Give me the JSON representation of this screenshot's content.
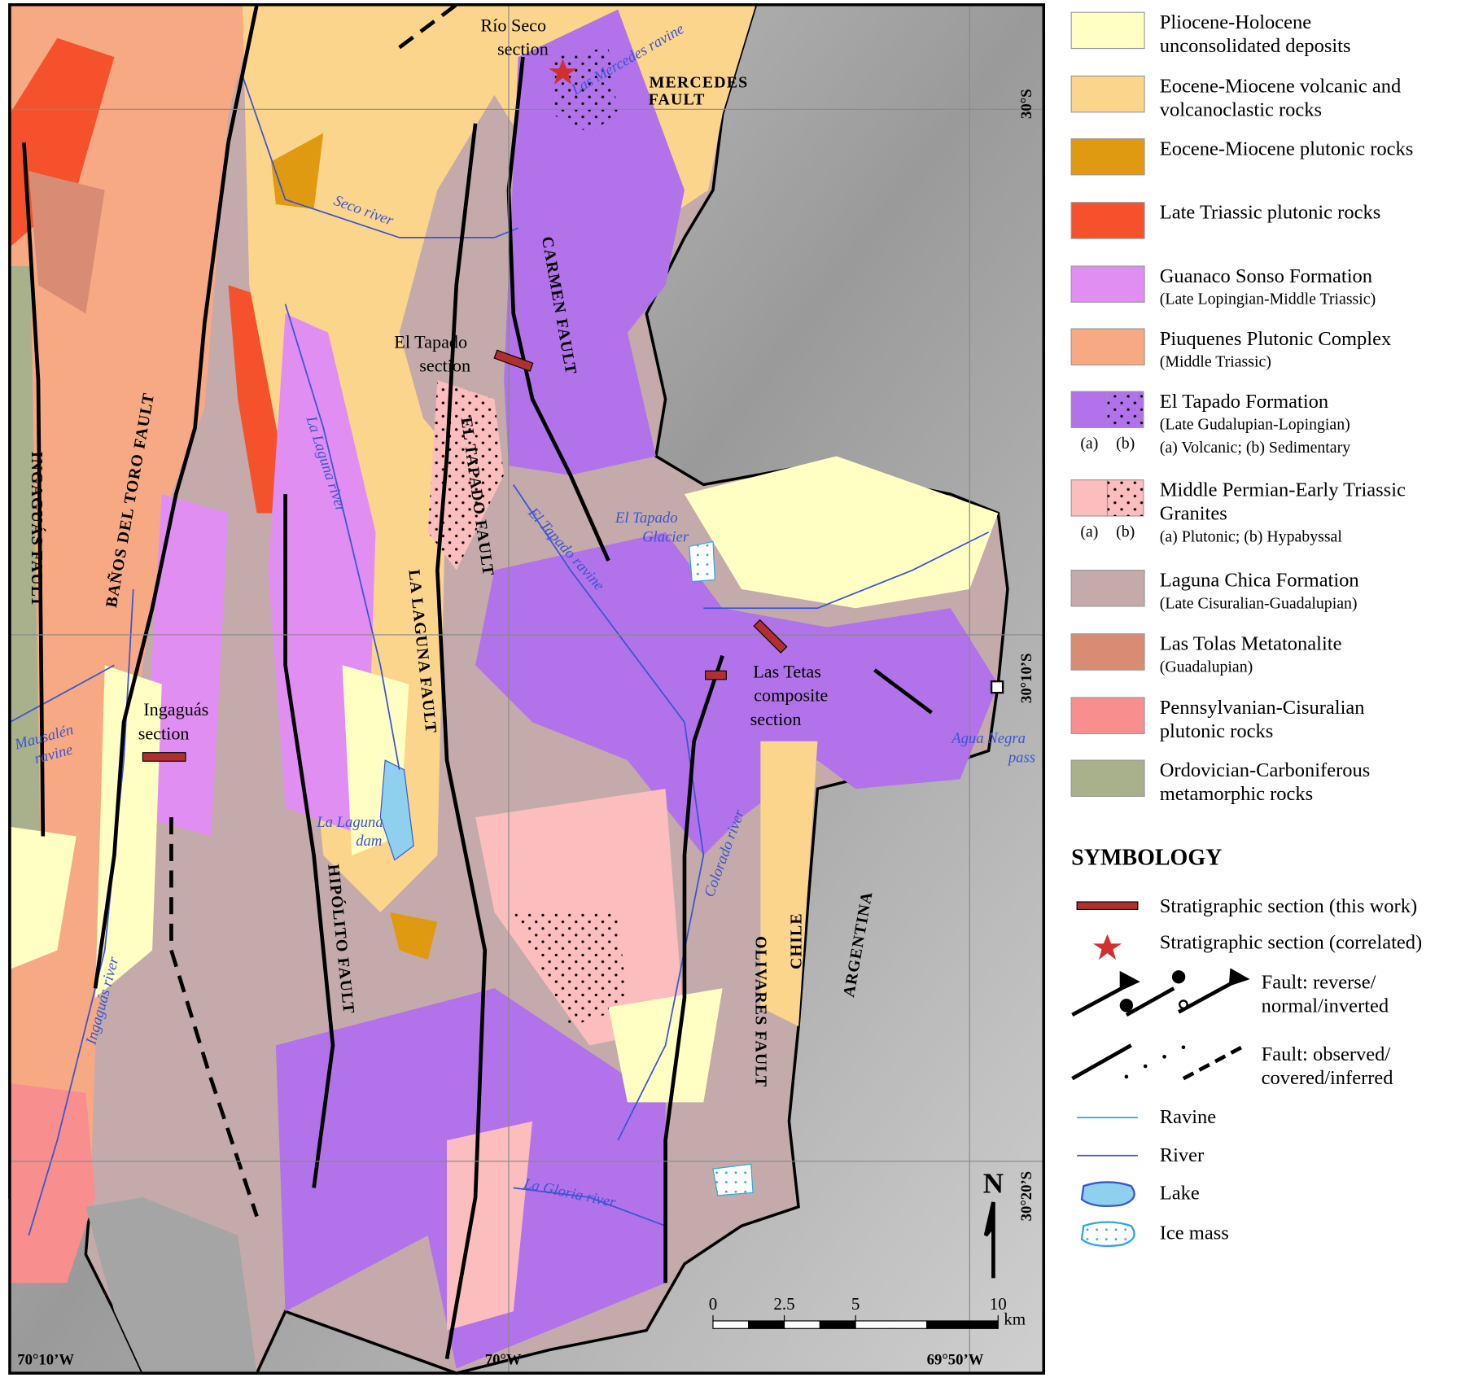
{
  "map": {
    "sections": [
      [
        "Río Seco",
        "section"
      ],
      [
        "El Tapado",
        "section"
      ],
      [
        "Ingaguás",
        "section"
      ],
      [
        "Las Tetas",
        "composite",
        "section"
      ]
    ],
    "faults": [
      [
        "MERCEDES",
        "FAULT"
      ],
      [
        "CARMEN FAULT"
      ],
      [
        "EL TAPADO FAULT"
      ],
      [
        "LA LAGUNA FAULT"
      ],
      [
        "HIPÓLITO FAULT"
      ],
      [
        "OLIVARES FAULT"
      ],
      [
        "BAÑOS DEL TORO FAULT"
      ],
      [
        "INGAGUÁS FAULT"
      ]
    ],
    "water": [
      [
        "Las Mercedes ravine"
      ],
      [
        "Seco river"
      ],
      [
        "La Laguna river"
      ],
      [
        "El Tapado ravine"
      ],
      [
        "El Tapado",
        "Glacier"
      ],
      [
        "Mausalén",
        "ravine"
      ],
      [
        "La Laguna",
        "dam"
      ],
      [
        "Ingaguás river"
      ],
      [
        "Colorado river"
      ],
      [
        "La Gloria river"
      ],
      [
        "Agua Negra",
        "pass"
      ]
    ],
    "countries": [
      "CHILE",
      "ARGENTINA"
    ],
    "coordinates": [
      "30°S",
      "30°10’S",
      "30°20’S",
      "70°10’W",
      "70°W",
      "69°50’W"
    ],
    "north": "N",
    "scale": {
      "ticks": [
        0,
        2.5,
        5,
        10
      ],
      "unit": "km"
    }
  },
  "legend": {
    "units": [
      {
        "name": [
          "Pliocene-Holocene",
          "unconsolidated deposits"
        ],
        "color": "#ffffc4"
      },
      {
        "name": [
          "Eocene-Miocene volcanic and",
          "volcanoclastic rocks"
        ],
        "color": "#fcd58c"
      },
      {
        "name": [
          "Eocene-Miocene plutonic rocks"
        ],
        "color": "#e09a12"
      },
      {
        "name": [
          "Late Triassic plutonic rocks"
        ],
        "color": "#f4512c"
      },
      {
        "name": [
          "Guanaco Sonso Formation"
        ],
        "subtitle": [
          "(Late Lopingian-Middle Triassic)"
        ],
        "color": "#e08ef2"
      },
      {
        "name": [
          "Piuquenes Plutonic Complex"
        ],
        "subtitle": [
          "(Middle Triassic)"
        ],
        "color": "#f7a984"
      },
      {
        "name": [
          "El Tapado Formation"
        ],
        "subtitle": [
          "(Late Gudalupian-Lopingian)",
          "(a) Volcanic; (b) Sedimentary"
        ],
        "color": "#b172ea",
        "parts": [
          "(a)",
          "(b)"
        ]
      },
      {
        "name": [
          "Middle Permian-Early Triassic",
          "Granites"
        ],
        "subtitle": [
          "(a) Plutonic; (b) Hypabyssal"
        ],
        "color": "#fbbdbd",
        "parts": [
          "(a)",
          "(b)"
        ]
      },
      {
        "name": [
          "Laguna Chica Formation"
        ],
        "subtitle": [
          "(Late Cisuralian-Guadalupian)"
        ],
        "color": "#c4aaaa"
      },
      {
        "name": [
          "Las Tolas Metatonalite"
        ],
        "subtitle": [
          "(Guadalupian)"
        ],
        "color": "#d98c74"
      },
      {
        "name": [
          "Pennsylvanian-Cisuralian",
          "plutonic rocks"
        ],
        "color": "#f88e8e"
      },
      {
        "name": [
          "Ordovician-Carboniferous",
          "metamorphic rocks"
        ],
        "color": "#a8b08c"
      }
    ],
    "symbology_title": "SYMBOLOGY",
    "symbology": [
      [
        "Stratigraphic section (this work)"
      ],
      [
        "Stratigraphic section (correlated)"
      ],
      [
        "Fault: reverse/",
        "normal/inverted"
      ],
      [
        "Fault: observed/",
        "covered/inferred"
      ],
      [
        "Ravine"
      ],
      [
        "River"
      ],
      [
        "Lake"
      ],
      [
        "Ice mass"
      ]
    ]
  }
}
